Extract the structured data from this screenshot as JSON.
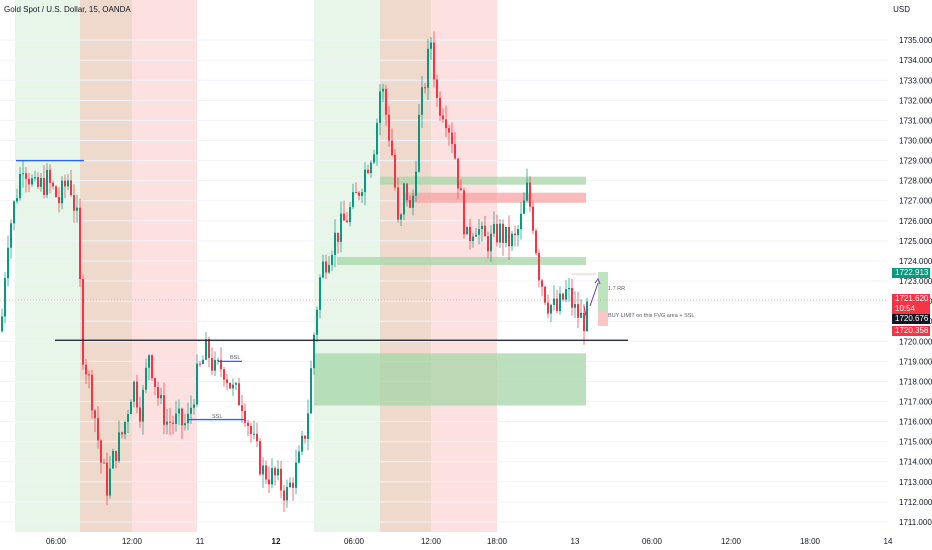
{
  "header": {
    "title": "Gold Spot / U.S. Dollar, 15, OANDA",
    "currency": "USD"
  },
  "price_tags": [
    {
      "id": "tag-target",
      "label": "1722.913",
      "color": "#089981"
    },
    {
      "id": "tag-last",
      "label": "1721.620",
      "color": "#f23645"
    },
    {
      "id": "tag-countdown",
      "label": "10:54",
      "color": "#f23645"
    },
    {
      "id": "tag-entry",
      "label": "1720.676",
      "color": "#131722"
    },
    {
      "id": "tag-low",
      "label": "1720.358",
      "color": "#f23645"
    }
  ],
  "annotations": {
    "rr_label": "1.7 RR",
    "buy_label": "BUY LIMIT on this FVG area + SSL",
    "bsl_label": "BSL",
    "ssl_label": "SSL"
  },
  "chart_data": {
    "type": "candlestick",
    "title": "Gold Spot / U.S. Dollar, 15, OANDA",
    "y_unit": "USD",
    "ylim": [
      1710.5,
      1736.5
    ],
    "y_ticks": [
      1711,
      1712,
      1713,
      1714,
      1715,
      1716,
      1717,
      1718,
      1719,
      1720,
      1721,
      1722,
      1723,
      1724,
      1725,
      1726,
      1727,
      1728,
      1729,
      1730,
      1731,
      1732,
      1733,
      1734,
      1735
    ],
    "y_tick_labels": [
      "1711.000",
      "1712.000",
      "1713.000",
      "1714.000",
      "1715.000",
      "1716.000",
      "1717.000",
      "1718.000",
      "1719.000",
      "1720.000",
      "1721.000",
      "1722.000",
      "1723.000",
      "1724.000",
      "1725.000",
      "1726.000",
      "1727.000",
      "1728.000",
      "1729.000",
      "1730.000",
      "1731.000",
      "1732.000",
      "1733.000",
      "1734.000",
      "1735.000"
    ],
    "x_ticks": [
      {
        "label": "06:00",
        "bold": false
      },
      {
        "label": "12:00",
        "bold": false
      },
      {
        "label": "11",
        "bold": false
      },
      {
        "label": "12",
        "bold": true
      },
      {
        "label": "06:00",
        "bold": false
      },
      {
        "label": "12:00",
        "bold": false
      },
      {
        "label": "18:00",
        "bold": false
      },
      {
        "label": "13",
        "bold": false
      },
      {
        "label": "06:00",
        "bold": false
      },
      {
        "label": "12:00",
        "bold": false
      },
      {
        "label": "18:00",
        "bold": false
      },
      {
        "label": "14",
        "bold": false
      }
    ],
    "candle_path": [
      [
        0,
        1720.5
      ],
      [
        6,
        1725.0
      ],
      [
        14,
        1727.0
      ],
      [
        22,
        1729.0
      ],
      [
        34,
        1727.5
      ],
      [
        46,
        1728.0
      ],
      [
        58,
        1727.0
      ],
      [
        68,
        1728.2
      ],
      [
        76,
        1726.0
      ],
      [
        82,
        1719.5
      ],
      [
        92,
        1717.0
      ],
      [
        100,
        1714.0
      ],
      [
        106,
        1712.8
      ],
      [
        114,
        1714.5
      ],
      [
        122,
        1715.5
      ],
      [
        132,
        1718.0
      ],
      [
        140,
        1716.5
      ],
      [
        148,
        1719.5
      ],
      [
        158,
        1717.0
      ],
      [
        166,
        1716.0
      ],
      [
        176,
        1716.0
      ],
      [
        186,
        1715.8
      ],
      [
        196,
        1718.2
      ],
      [
        206,
        1719.6
      ],
      [
        214,
        1718.5
      ],
      [
        222,
        1718.8
      ],
      [
        232,
        1717.5
      ],
      [
        242,
        1717.0
      ],
      [
        252,
        1715.0
      ],
      [
        262,
        1713.5
      ],
      [
        274,
        1713.2
      ],
      [
        286,
        1712.4
      ],
      [
        298,
        1714.0
      ],
      [
        306,
        1716.0
      ],
      [
        314,
        1721.0
      ],
      [
        320,
        1723.5
      ],
      [
        332,
        1725.0
      ],
      [
        344,
        1726.0
      ],
      [
        354,
        1727.0
      ],
      [
        364,
        1728.5
      ],
      [
        374,
        1730.0
      ],
      [
        380,
        1733.0
      ],
      [
        386,
        1731.0
      ],
      [
        392,
        1729.0
      ],
      [
        398,
        1725.0
      ],
      [
        404,
        1728.0
      ],
      [
        410,
        1726.0
      ],
      [
        418,
        1731.0
      ],
      [
        424,
        1733.0
      ],
      [
        430,
        1735.0
      ],
      [
        436,
        1732.0
      ],
      [
        444,
        1731.5
      ],
      [
        452,
        1730.0
      ],
      [
        460,
        1727.0
      ],
      [
        466,
        1725.0
      ],
      [
        474,
        1726.0
      ],
      [
        482,
        1725.0
      ],
      [
        490,
        1725.0
      ],
      [
        498,
        1725.5
      ],
      [
        506,
        1725.0
      ],
      [
        514,
        1725.0
      ],
      [
        520,
        1726.0
      ],
      [
        526,
        1727.5
      ],
      [
        532,
        1726.0
      ],
      [
        538,
        1723.5
      ],
      [
        546,
        1722.0
      ],
      [
        556,
        1721.5
      ],
      [
        566,
        1722.5
      ],
      [
        574,
        1721.5
      ],
      [
        582,
        1721.0
      ],
      [
        590,
        1721.6
      ]
    ],
    "zones": [
      {
        "kind": "killzone-green",
        "x0": 15,
        "x1": 80
      },
      {
        "kind": "killzone-brown",
        "x0": 80,
        "x1": 132
      },
      {
        "kind": "killzone-red",
        "x0": 132,
        "x1": 197
      },
      {
        "kind": "killzone-green",
        "x0": 314,
        "x1": 380
      },
      {
        "kind": "killzone-brown",
        "x0": 380,
        "x1": 431
      },
      {
        "kind": "killzone-red",
        "x0": 431,
        "x1": 497
      }
    ],
    "boxes": [
      {
        "kind": "green",
        "y0": 1716.8,
        "y1": 1719.4,
        "x0": 314,
        "x1": 586
      },
      {
        "kind": "green",
        "y0": 1723.8,
        "y1": 1724.2,
        "x0": 337,
        "x1": 586
      },
      {
        "kind": "green",
        "y0": 1727.8,
        "y1": 1728.2,
        "x0": 380,
        "x1": 586
      },
      {
        "kind": "red",
        "y0": 1726.9,
        "y1": 1727.4,
        "x0": 403,
        "x1": 586
      }
    ],
    "levels": [
      {
        "name": "bsl-high",
        "y": 1729.0,
        "x0": 16,
        "x1": 84,
        "color": "#2962ff"
      },
      {
        "name": "entry-line",
        "y": 1720.05,
        "x0": 55,
        "x1": 628,
        "color": "#131722"
      },
      {
        "name": "bsl-mid",
        "y": 1719.0,
        "x0": 218,
        "x1": 242,
        "color": "#2962ff"
      },
      {
        "name": "ssl-low",
        "y": 1716.1,
        "x0": 188,
        "x1": 245,
        "color": "#2962ff"
      }
    ]
  }
}
